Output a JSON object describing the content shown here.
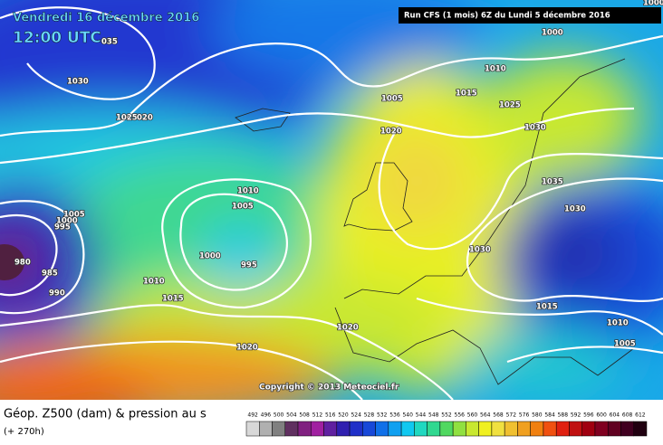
{
  "header": {
    "date": "Vendredi 16 décembre 2016",
    "time": "12:00 UTC",
    "run": "Run CFS (1 mois) 6Z du Lundi 5 décembre 2016"
  },
  "copyright": "Copyright © 2013 Meteociel.fr",
  "footer": {
    "title": "Géop. Z500 (dam) & pression au s",
    "lead": "(+ 270h)"
  },
  "isobar_labels": [
    1000,
    "035",
    1030,
    1025,
    "020",
    1010,
    1005,
    1015,
    1025,
    1020,
    1030,
    1035,
    1030,
    1030,
    1010,
    1005,
    1000,
    995,
    1005,
    1000,
    995,
    980,
    985,
    990,
    1010,
    1015,
    1020,
    1020,
    1015,
    1010,
    1005,
    1000
  ],
  "scale": {
    "values": [
      492,
      496,
      500,
      504,
      508,
      512,
      516,
      520,
      524,
      528,
      532,
      536,
      540,
      544,
      548,
      552,
      556,
      560,
      564,
      568,
      572,
      576,
      580,
      584,
      588,
      592,
      596,
      600,
      604,
      608,
      612
    ],
    "colors": [
      "#d8d8d8",
      "#b0b0b0",
      "#808080",
      "#603060",
      "#802080",
      "#a020a0",
      "#6020a0",
      "#3020b0",
      "#2030c8",
      "#1848d8",
      "#1070e8",
      "#10a0f0",
      "#10c8f0",
      "#20d8c0",
      "#30d890",
      "#50d860",
      "#90e040",
      "#c8e830",
      "#f0f020",
      "#f0e040",
      "#f0c030",
      "#f0a020",
      "#f08010",
      "#f05010",
      "#e02010",
      "#c01010",
      "#a00010",
      "#800020",
      "#600020",
      "#400020",
      "#200010"
    ]
  }
}
